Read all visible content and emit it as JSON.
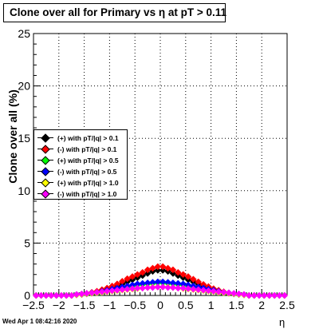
{
  "title": "Clone  over all for Primary vs   η at pT > 0.11",
  "datestamp": "Wed Apr  1 08:42:16 2020",
  "legend": [
    {
      "label": "(+) with pT/|q| > 0.1",
      "color": "#000000"
    },
    {
      "label": "(-) with pT/|q| > 0.1",
      "color": "#ff0000"
    },
    {
      "label": "(+) with pT/|q| > 0.5",
      "color": "#00ff00"
    },
    {
      "label": "(-) with pT/|q| > 0.5",
      "color": "#0000ff"
    },
    {
      "label": "(+) with pT/|q| > 1.0",
      "color": "#ffff00"
    },
    {
      "label": "(-) with pT/|q| > 1.0",
      "color": "#ff00ff"
    }
  ],
  "chart_data": {
    "type": "scatter",
    "title": "Clone  over all for Primary vs   η at pT > 0.11",
    "xlabel": "η",
    "ylabel": "Clone  over all (%)",
    "xlim": [
      -2.5,
      2.5
    ],
    "ylim": [
      0,
      25
    ],
    "xticks": [
      "−2.5",
      "−2",
      "−1.5",
      "−1",
      "−0.5",
      "0",
      "0.5",
      "1",
      "1.5",
      "2",
      "2.5"
    ],
    "yticks": [
      "0",
      "5",
      "10",
      "15",
      "20",
      "25"
    ],
    "grid": true,
    "legend_position": "left",
    "x": [
      -2.45,
      -2.35,
      -2.25,
      -2.15,
      -2.05,
      -1.95,
      -1.85,
      -1.75,
      -1.65,
      -1.55,
      -1.45,
      -1.35,
      -1.25,
      -1.15,
      -1.05,
      -0.95,
      -0.85,
      -0.75,
      -0.65,
      -0.55,
      -0.45,
      -0.35,
      -0.25,
      -0.15,
      -0.05,
      0.05,
      0.15,
      0.25,
      0.35,
      0.45,
      0.55,
      0.65,
      0.75,
      0.85,
      0.95,
      1.05,
      1.15,
      1.25,
      1.35,
      1.45,
      1.55,
      1.65,
      1.75,
      1.85,
      1.95,
      2.05,
      2.15,
      2.25,
      2.35,
      2.45
    ],
    "series": [
      {
        "name": "(+) with pT/|q| > 0.1",
        "color": "#000000",
        "values": [
          0,
          0,
          0,
          0,
          0,
          0,
          0,
          0,
          0.05,
          0.1,
          0.15,
          0.2,
          0.3,
          0.4,
          0.5,
          0.7,
          0.9,
          1.1,
          1.3,
          1.5,
          1.7,
          1.9,
          2.1,
          2.3,
          2.4,
          2.4,
          2.3,
          2.1,
          1.9,
          1.7,
          1.5,
          1.3,
          1.1,
          0.9,
          0.7,
          0.5,
          0.4,
          0.3,
          0.2,
          0.15,
          0.1,
          0.05,
          0,
          0,
          0,
          0,
          0,
          0,
          0,
          0
        ]
      },
      {
        "name": "(-) with pT/|q| > 0.1",
        "color": "#ff0000",
        "values": [
          0,
          0,
          0,
          0,
          0,
          0,
          0,
          0,
          0.05,
          0.1,
          0.2,
          0.3,
          0.4,
          0.55,
          0.7,
          0.9,
          1.1,
          1.35,
          1.6,
          1.8,
          2.0,
          2.2,
          2.45,
          2.6,
          2.75,
          2.75,
          2.6,
          2.45,
          2.2,
          2.0,
          1.8,
          1.55,
          1.3,
          1.05,
          0.85,
          0.65,
          0.5,
          0.35,
          0.25,
          0.15,
          0.1,
          0.05,
          0,
          0,
          0,
          0,
          0,
          0,
          0,
          0
        ]
      },
      {
        "name": "(+) with pT/|q| > 0.5",
        "color": "#00ff00",
        "values": [
          0,
          0,
          0,
          0,
          0,
          0,
          0,
          0,
          0.05,
          0.1,
          0.15,
          0.2,
          0.25,
          0.3,
          0.4,
          0.5,
          0.6,
          0.7,
          0.8,
          0.9,
          1.0,
          1.05,
          1.1,
          1.15,
          1.2,
          1.2,
          1.15,
          1.1,
          1.05,
          1.0,
          0.9,
          0.8,
          0.7,
          0.6,
          0.5,
          0.4,
          0.3,
          0.25,
          0.2,
          0.15,
          0.1,
          0.05,
          0,
          0,
          0,
          0,
          0,
          0,
          0,
          0
        ]
      },
      {
        "name": "(-) with pT/|q| > 0.5",
        "color": "#0000ff",
        "values": [
          0,
          0,
          0,
          0,
          0,
          0,
          0,
          0,
          0.05,
          0.1,
          0.15,
          0.25,
          0.3,
          0.4,
          0.5,
          0.6,
          0.7,
          0.8,
          0.9,
          1.0,
          1.1,
          1.15,
          1.2,
          1.25,
          1.3,
          1.3,
          1.25,
          1.2,
          1.15,
          1.1,
          1.0,
          0.9,
          0.8,
          0.7,
          0.6,
          0.5,
          0.4,
          0.3,
          0.25,
          0.15,
          0.1,
          0.05,
          0,
          0,
          0,
          0,
          0,
          0,
          0,
          0
        ]
      },
      {
        "name": "(+) with pT/|q| > 1.0",
        "color": "#ffff00",
        "values": [
          0,
          0,
          0,
          0,
          0,
          0,
          0,
          0,
          0.05,
          0.1,
          0.15,
          0.2,
          0.25,
          0.3,
          0.35,
          0.4,
          0.45,
          0.5,
          0.55,
          0.6,
          0.65,
          0.7,
          0.75,
          0.8,
          0.8,
          0.8,
          0.8,
          0.75,
          0.7,
          0.65,
          0.6,
          0.55,
          0.5,
          0.45,
          0.4,
          0.35,
          0.3,
          0.25,
          0.2,
          0.15,
          0.1,
          0.05,
          0,
          0,
          0,
          0,
          0,
          0,
          0,
          0
        ]
      },
      {
        "name": "(-) with pT/|q| > 1.0",
        "color": "#ff00ff",
        "values": [
          0,
          0,
          0,
          0,
          0,
          0,
          0,
          0,
          0.1,
          0.15,
          0.2,
          0.25,
          0.3,
          0.35,
          0.4,
          0.45,
          0.5,
          0.55,
          0.6,
          0.65,
          0.7,
          0.7,
          0.75,
          0.75,
          0.8,
          0.8,
          0.75,
          0.75,
          0.7,
          0.7,
          0.65,
          0.6,
          0.55,
          0.5,
          0.45,
          0.4,
          0.35,
          0.3,
          0.25,
          0.2,
          0.15,
          0.1,
          0,
          0,
          0,
          0,
          0,
          0,
          0,
          0
        ]
      }
    ]
  }
}
